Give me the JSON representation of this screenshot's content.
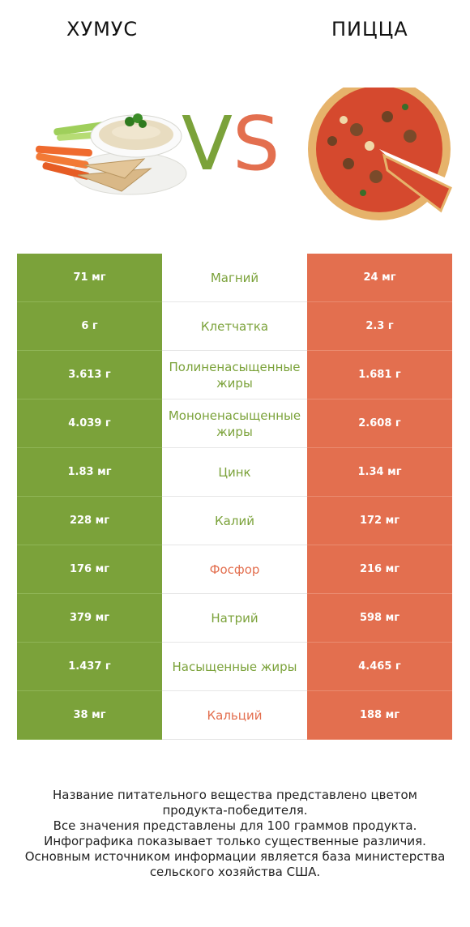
{
  "header": {
    "left_title": "ХУМУС",
    "right_title": "ПИЦЦА",
    "vs_v": "V",
    "vs_s": "S"
  },
  "colors": {
    "left": "#7ba23a",
    "right": "#e36f4f"
  },
  "rows": [
    {
      "nutrient": "Магний",
      "left": "71 мг",
      "right": "24 мг",
      "winner": "left"
    },
    {
      "nutrient": "Клетчатка",
      "left": "6 г",
      "right": "2.3 г",
      "winner": "left"
    },
    {
      "nutrient": "Полиненасыщенные жиры",
      "left": "3.613 г",
      "right": "1.681 г",
      "winner": "left"
    },
    {
      "nutrient": "Мононенасыщенные жиры",
      "left": "4.039 г",
      "right": "2.608 г",
      "winner": "left"
    },
    {
      "nutrient": "Цинк",
      "left": "1.83 мг",
      "right": "1.34 мг",
      "winner": "left"
    },
    {
      "nutrient": "Калий",
      "left": "228 мг",
      "right": "172 мг",
      "winner": "left"
    },
    {
      "nutrient": "Фосфор",
      "left": "176 мг",
      "right": "216 мг",
      "winner": "right"
    },
    {
      "nutrient": "Натрий",
      "left": "379 мг",
      "right": "598 мг",
      "winner": "left"
    },
    {
      "nutrient": "Насыщенные жиры",
      "left": "1.437 г",
      "right": "4.465 г",
      "winner": "left"
    },
    {
      "nutrient": "Кальций",
      "left": "38 мг",
      "right": "188 мг",
      "winner": "right"
    }
  ],
  "footer": {
    "line1": "Название питательного вещества представлено цветом",
    "line2": "продукта-победителя.",
    "line3": "Все значения представлены для 100 граммов продукта.",
    "line4": "Инфографика показывает только существенные различия.",
    "line5": "Основным источником информации является база министерства",
    "line6": "сельского хозяйства США."
  }
}
